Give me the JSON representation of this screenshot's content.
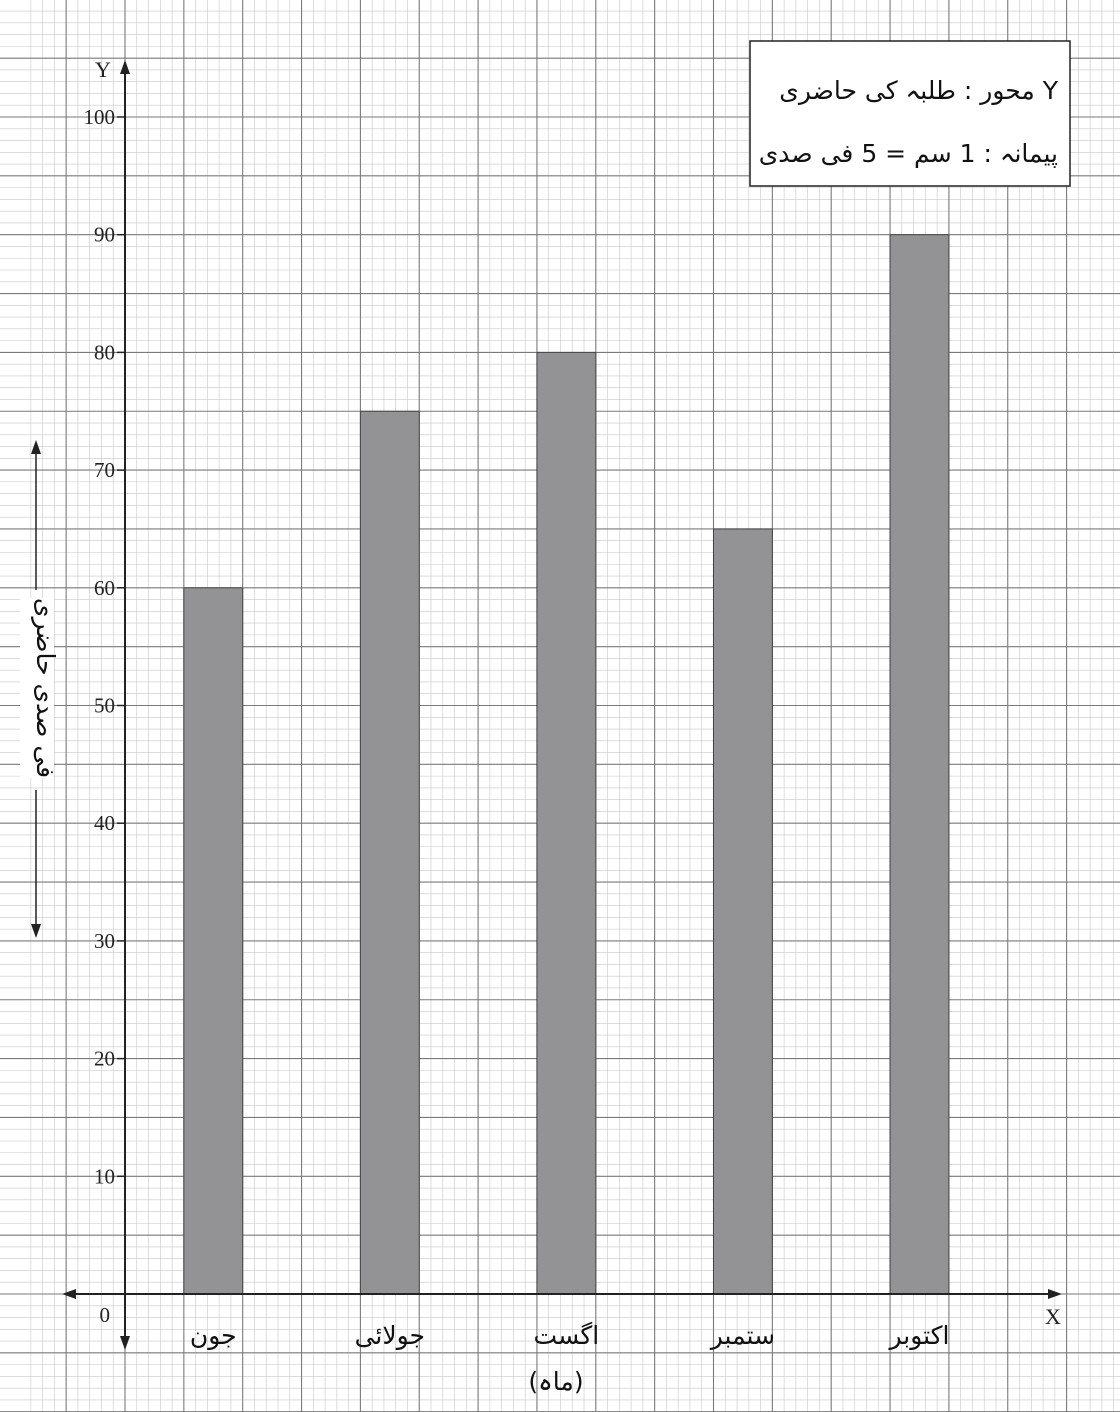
{
  "chart_data": {
    "type": "bar",
    "categories": [
      "جون",
      "جولائی",
      "اگست",
      "ستمبر",
      "اکتوبر"
    ],
    "values": [
      60,
      75,
      80,
      65,
      90
    ],
    "ylim": [
      0,
      100
    ],
    "yticks": [
      10,
      20,
      30,
      40,
      50,
      60,
      70,
      80,
      90,
      100
    ],
    "origin_label": "0",
    "x_axis_letter": "X",
    "y_axis_letter": "Y",
    "xlabel": "(ماہ)",
    "ylabel": "فی صدی حاضری",
    "legend": {
      "line1": "Y محور : طلبہ کی حاضری",
      "line2": "پیمانہ : 1 سم = 5 فی صدی",
      "placement": "top-right"
    },
    "grid": true,
    "colors": {
      "bar": "#939396",
      "bar_edge": "#444444",
      "grid_minor": "#c8c8c8",
      "grid_major": "#7a7a7a",
      "axis": "#222222"
    }
  }
}
